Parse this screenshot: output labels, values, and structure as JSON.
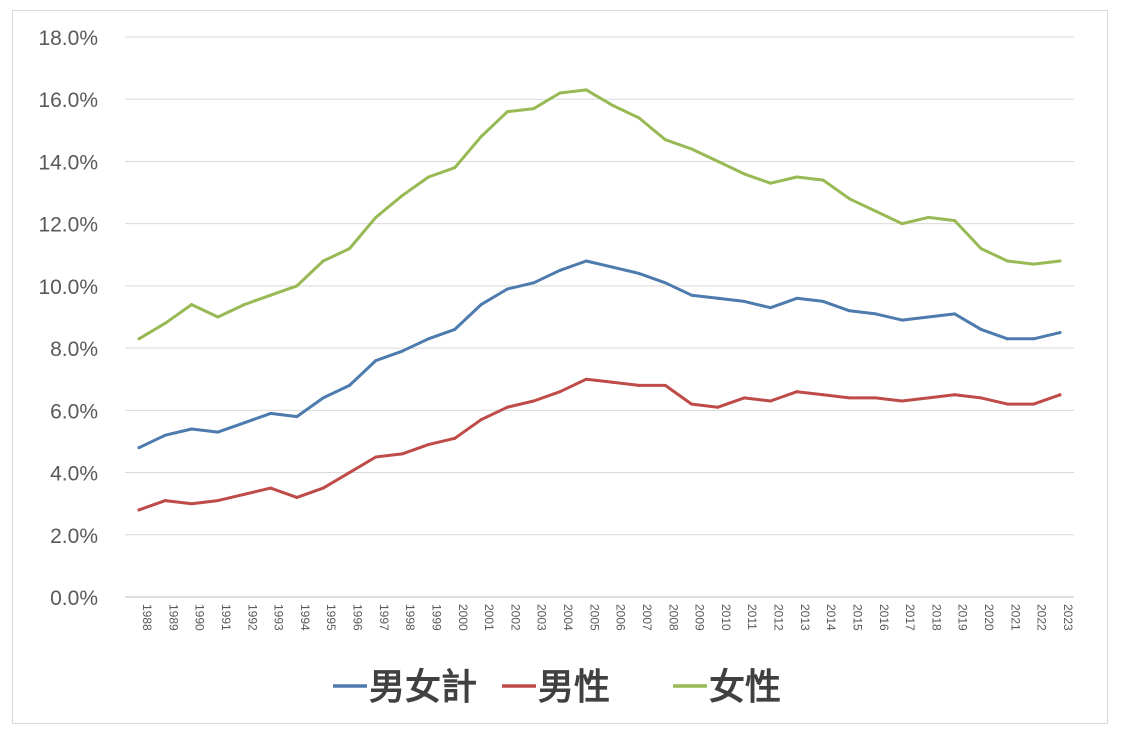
{
  "chart_data": {
    "type": "line",
    "ylim": [
      0,
      18
    ],
    "yticks": [
      "0.0%",
      "2.0%",
      "4.0%",
      "6.0%",
      "8.0%",
      "10.0%",
      "12.0%",
      "14.0%",
      "16.0%",
      "18.0%"
    ],
    "grid": true,
    "legend_position": "bottom",
    "x": [
      "1988",
      "1989",
      "1990",
      "1991",
      "1992",
      "1993",
      "1994",
      "1995",
      "1996",
      "1997",
      "1998",
      "1999",
      "2000",
      "2001",
      "2002",
      "2003",
      "2004",
      "2005",
      "2006",
      "2007",
      "2008",
      "2009",
      "2010",
      "2011",
      "2012",
      "2013",
      "2014",
      "2015",
      "2016",
      "2017",
      "2018",
      "2019",
      "2020",
      "2021",
      "2022",
      "2023"
    ],
    "series": [
      {
        "name": "男女計",
        "color": "#4e7bad",
        "values": [
          4.8,
          5.2,
          5.4,
          5.3,
          5.6,
          5.9,
          5.8,
          6.4,
          6.8,
          7.6,
          7.9,
          8.3,
          8.6,
          9.4,
          9.9,
          10.1,
          10.5,
          10.8,
          10.6,
          10.4,
          10.1,
          9.7,
          9.6,
          9.5,
          9.3,
          9.6,
          9.5,
          9.2,
          9.1,
          8.9,
          9.0,
          9.1,
          8.6,
          8.3,
          8.3,
          8.5
        ]
      },
      {
        "name": "男性",
        "color": "#be4b48",
        "values": [
          2.8,
          3.1,
          3.0,
          3.1,
          3.3,
          3.5,
          3.2,
          3.5,
          4.0,
          4.5,
          4.6,
          4.9,
          5.1,
          5.7,
          6.1,
          6.3,
          6.6,
          7.0,
          6.9,
          6.8,
          6.8,
          6.2,
          6.1,
          6.4,
          6.3,
          6.6,
          6.5,
          6.4,
          6.4,
          6.3,
          6.4,
          6.5,
          6.4,
          6.2,
          6.2,
          6.5
        ]
      },
      {
        "name": "女性",
        "color": "#98b954",
        "values": [
          8.3,
          8.8,
          9.4,
          9.0,
          9.4,
          9.7,
          10.0,
          10.8,
          11.2,
          12.2,
          12.9,
          13.5,
          13.8,
          14.8,
          15.6,
          15.7,
          16.2,
          16.3,
          15.8,
          15.4,
          14.7,
          14.4,
          14.0,
          13.6,
          13.3,
          13.5,
          13.4,
          12.8,
          12.4,
          12.0,
          12.2,
          12.1,
          11.2,
          10.8,
          10.7,
          10.8
        ]
      }
    ]
  }
}
